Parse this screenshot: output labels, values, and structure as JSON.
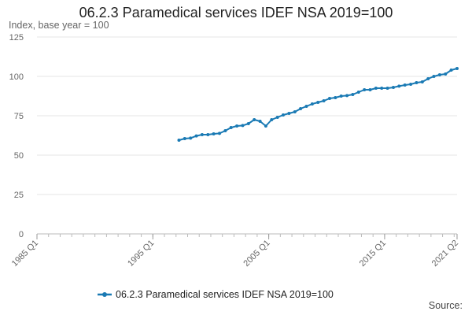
{
  "page": {
    "title": "06.2.3 Paramedical services IDEF NSA 2019=100",
    "y_unit_label": "Index, base year = 100",
    "source_label": "Source:"
  },
  "chart_data": {
    "type": "line",
    "title": "06.2.3 Paramedical services IDEF NSA 2019=100",
    "ylabel": "Index, base year = 100",
    "xlabel": "",
    "xlim": [
      "1985 Q1",
      "2021 Q2"
    ],
    "ylim": [
      0,
      125
    ],
    "y_ticks": [
      0,
      25,
      50,
      75,
      100,
      125
    ],
    "x_tick_labels": [
      "1985 Q1",
      "1995 Q1",
      "2005 Q1",
      "2015 Q1",
      "2021 Q2"
    ],
    "x_tick_years": [
      1985,
      1995,
      2005,
      2015,
      2021.25
    ],
    "grid": "horizontal",
    "legend": "bottom",
    "color": "#1a7ab4",
    "series": [
      {
        "name": "06.2.3 Paramedical services IDEF NSA 2019=100",
        "x": [
          "1997 Q2",
          "1997 Q4",
          "1998 Q2",
          "1998 Q4",
          "1999 Q2",
          "1999 Q4",
          "2000 Q2",
          "2000 Q4",
          "2001 Q2",
          "2001 Q4",
          "2002 Q2",
          "2002 Q4",
          "2003 Q2",
          "2003 Q4",
          "2004 Q2",
          "2004 Q4",
          "2005 Q2",
          "2005 Q4",
          "2006 Q2",
          "2006 Q4",
          "2007 Q2",
          "2007 Q4",
          "2008 Q2",
          "2008 Q4",
          "2009 Q2",
          "2009 Q4",
          "2010 Q2",
          "2010 Q4",
          "2011 Q2",
          "2011 Q4",
          "2012 Q2",
          "2012 Q4",
          "2013 Q2",
          "2013 Q4",
          "2014 Q2",
          "2014 Q4",
          "2015 Q2",
          "2015 Q4",
          "2016 Q2",
          "2016 Q4",
          "2017 Q2",
          "2017 Q4",
          "2018 Q2",
          "2018 Q4",
          "2019 Q2",
          "2019 Q4",
          "2020 Q2",
          "2020 Q4",
          "2021 Q2"
        ],
        "values": [
          59.5,
          60.5,
          60.8,
          62.2,
          63.0,
          63.0,
          63.5,
          63.8,
          65.5,
          67.5,
          68.5,
          68.8,
          70.0,
          72.5,
          71.5,
          68.5,
          72.5,
          74.0,
          75.5,
          76.5,
          77.5,
          79.5,
          81.0,
          82.5,
          83.5,
          84.5,
          86.0,
          86.5,
          87.5,
          87.8,
          88.5,
          90.0,
          91.5,
          91.5,
          92.5,
          92.5,
          92.5,
          93.0,
          93.8,
          94.5,
          95.0,
          96.0,
          96.5,
          98.5,
          100.0,
          101.0,
          101.5,
          104.0,
          105.0
        ]
      }
    ]
  }
}
